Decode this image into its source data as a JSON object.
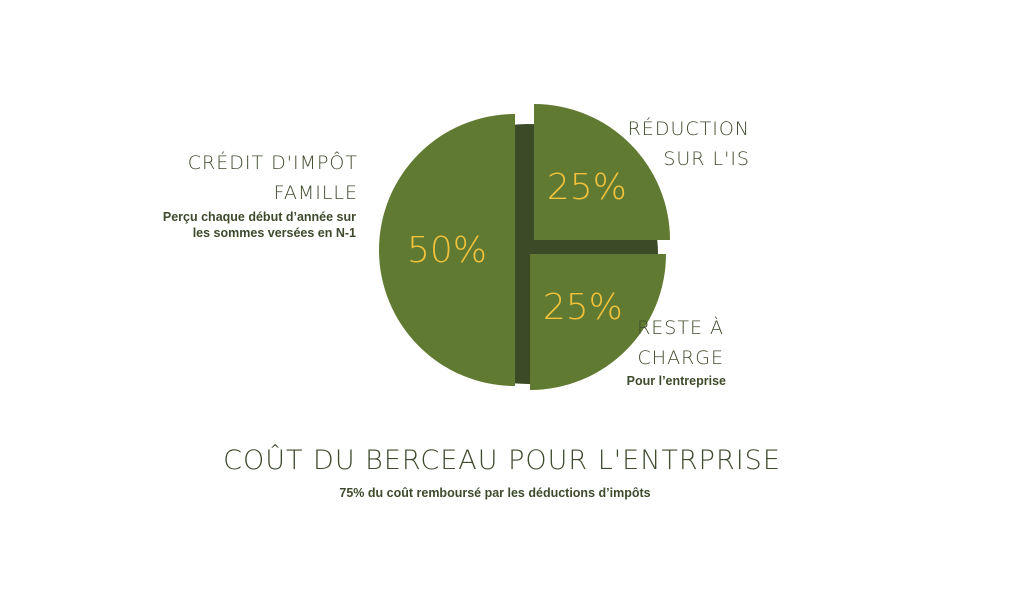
{
  "chart_data": {
    "type": "pie",
    "title": "COÛT DU BERCEAU POUR L'ENTRPRISE",
    "subtitle": "75% du coût remboursé par les déductions d’impôts",
    "slices": [
      {
        "label": "RÉDUCTION SUR L'IS",
        "value": 25,
        "value_label": "25%",
        "description": ""
      },
      {
        "label": "RESTE À CHARGE",
        "value": 25,
        "value_label": "25%",
        "description": "Pour l’entreprise"
      },
      {
        "label": "CRÉDIT D'IMPÔT FAMILLE",
        "value": 50,
        "value_label": "50%",
        "description": "Perçu chaque début d’année sur les sommes versées en N-1"
      }
    ],
    "exploded": true,
    "colors": {
      "slice": "#617a31",
      "shadow": "#3b4a27",
      "value_text": "#f2c23c",
      "label_text": "#3e4a2c"
    }
  }
}
